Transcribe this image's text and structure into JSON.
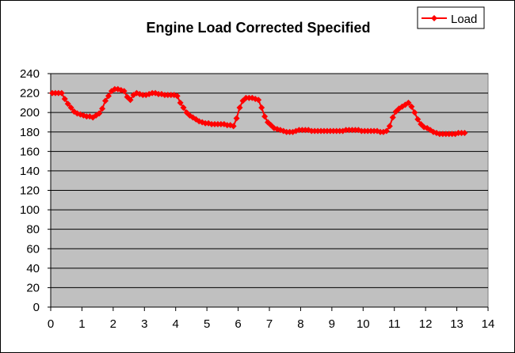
{
  "chart_data": {
    "type": "line",
    "title": "Engine Load Corrected Specified",
    "xlabel": "",
    "ylabel": "",
    "xlim": [
      0,
      14
    ],
    "ylim": [
      0,
      240
    ],
    "x_ticks": [
      "0",
      "1",
      "2",
      "3",
      "4",
      "5",
      "6",
      "7",
      "8",
      "9",
      "10",
      "11",
      "12",
      "13",
      "14"
    ],
    "y_ticks": [
      "0",
      "20",
      "40",
      "60",
      "80",
      "100",
      "120",
      "140",
      "160",
      "180",
      "200",
      "220",
      "240"
    ],
    "grid": "horizontal",
    "plot_background": "#c0c0c0",
    "legend_position": "top-right",
    "series": [
      {
        "name": "Load",
        "color": "#ff0000",
        "marker": "diamond",
        "points": [
          [
            0.05,
            220
          ],
          [
            0.15,
            220
          ],
          [
            0.25,
            220
          ],
          [
            0.35,
            220
          ],
          [
            0.45,
            214
          ],
          [
            0.55,
            209
          ],
          [
            0.65,
            205
          ],
          [
            0.75,
            201
          ],
          [
            0.85,
            199
          ],
          [
            0.95,
            198
          ],
          [
            1.05,
            197
          ],
          [
            1.15,
            196
          ],
          [
            1.25,
            196
          ],
          [
            1.35,
            195
          ],
          [
            1.45,
            197
          ],
          [
            1.55,
            199
          ],
          [
            1.65,
            204
          ],
          [
            1.75,
            212
          ],
          [
            1.85,
            217
          ],
          [
            1.95,
            222
          ],
          [
            2.05,
            224
          ],
          [
            2.15,
            224
          ],
          [
            2.25,
            223
          ],
          [
            2.35,
            222
          ],
          [
            2.45,
            216
          ],
          [
            2.55,
            213
          ],
          [
            2.65,
            218
          ],
          [
            2.75,
            220
          ],
          [
            2.85,
            219
          ],
          [
            2.95,
            218
          ],
          [
            3.05,
            218
          ],
          [
            3.15,
            219
          ],
          [
            3.25,
            220
          ],
          [
            3.35,
            220
          ],
          [
            3.45,
            219
          ],
          [
            3.55,
            219
          ],
          [
            3.65,
            218
          ],
          [
            3.75,
            218
          ],
          [
            3.85,
            218
          ],
          [
            3.95,
            218
          ],
          [
            4.05,
            217
          ],
          [
            4.15,
            210
          ],
          [
            4.25,
            205
          ],
          [
            4.35,
            200
          ],
          [
            4.45,
            197
          ],
          [
            4.55,
            195
          ],
          [
            4.65,
            193
          ],
          [
            4.75,
            191
          ],
          [
            4.85,
            190
          ],
          [
            4.95,
            189
          ],
          [
            5.05,
            189
          ],
          [
            5.15,
            188
          ],
          [
            5.25,
            188
          ],
          [
            5.35,
            188
          ],
          [
            5.45,
            188
          ],
          [
            5.55,
            188
          ],
          [
            5.65,
            187
          ],
          [
            5.75,
            187
          ],
          [
            5.85,
            186
          ],
          [
            5.95,
            194
          ],
          [
            6.05,
            205
          ],
          [
            6.15,
            212
          ],
          [
            6.25,
            215
          ],
          [
            6.35,
            215
          ],
          [
            6.45,
            215
          ],
          [
            6.55,
            214
          ],
          [
            6.65,
            213
          ],
          [
            6.75,
            205
          ],
          [
            6.85,
            196
          ],
          [
            6.95,
            190
          ],
          [
            7.05,
            187
          ],
          [
            7.15,
            184
          ],
          [
            7.25,
            183
          ],
          [
            7.35,
            182
          ],
          [
            7.45,
            181
          ],
          [
            7.55,
            180
          ],
          [
            7.65,
            180
          ],
          [
            7.75,
            180
          ],
          [
            7.85,
            181
          ],
          [
            7.95,
            182
          ],
          [
            8.05,
            182
          ],
          [
            8.15,
            182
          ],
          [
            8.25,
            182
          ],
          [
            8.35,
            181
          ],
          [
            8.45,
            181
          ],
          [
            8.55,
            181
          ],
          [
            8.65,
            181
          ],
          [
            8.75,
            181
          ],
          [
            8.85,
            181
          ],
          [
            8.95,
            181
          ],
          [
            9.05,
            181
          ],
          [
            9.15,
            181
          ],
          [
            9.25,
            181
          ],
          [
            9.35,
            181
          ],
          [
            9.45,
            182
          ],
          [
            9.55,
            182
          ],
          [
            9.65,
            182
          ],
          [
            9.75,
            182
          ],
          [
            9.85,
            182
          ],
          [
            9.95,
            181
          ],
          [
            10.05,
            181
          ],
          [
            10.15,
            181
          ],
          [
            10.25,
            181
          ],
          [
            10.35,
            181
          ],
          [
            10.45,
            181
          ],
          [
            10.55,
            180
          ],
          [
            10.65,
            180
          ],
          [
            10.75,
            181
          ],
          [
            10.85,
            186
          ],
          [
            10.95,
            195
          ],
          [
            11.05,
            201
          ],
          [
            11.15,
            204
          ],
          [
            11.25,
            206
          ],
          [
            11.35,
            208
          ],
          [
            11.45,
            210
          ],
          [
            11.55,
            206
          ],
          [
            11.65,
            200
          ],
          [
            11.75,
            193
          ],
          [
            11.85,
            188
          ],
          [
            11.95,
            185
          ],
          [
            12.05,
            184
          ],
          [
            12.15,
            182
          ],
          [
            12.25,
            180
          ],
          [
            12.35,
            179
          ],
          [
            12.45,
            178
          ],
          [
            12.55,
            178
          ],
          [
            12.65,
            178
          ],
          [
            12.75,
            178
          ],
          [
            12.85,
            178
          ],
          [
            12.95,
            178
          ],
          [
            13.05,
            179
          ],
          [
            13.15,
            179
          ],
          [
            13.25,
            179
          ]
        ]
      }
    ]
  }
}
